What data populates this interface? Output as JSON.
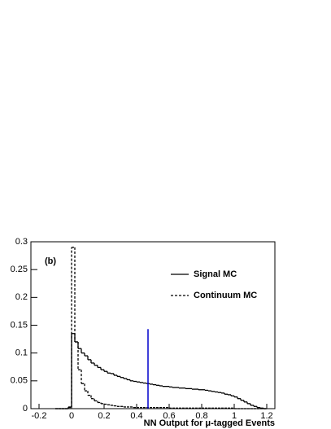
{
  "chart_data": {
    "type": "histogram",
    "annotation": "(b)",
    "x_label": "NN Output for μ-tagged Events",
    "bins": [
      -0.1,
      -0.08,
      -0.06,
      -0.04,
      -0.02,
      0,
      0.02,
      0.04,
      0.06,
      0.08,
      0.1,
      0.12,
      0.14,
      0.16,
      0.18,
      0.2,
      0.22,
      0.24,
      0.26,
      0.28,
      0.3,
      0.32,
      0.34,
      0.36,
      0.38,
      0.4,
      0.42,
      0.44,
      0.46,
      0.48,
      0.5,
      0.52,
      0.54,
      0.56,
      0.58,
      0.6,
      0.62,
      0.64,
      0.66,
      0.68,
      0.7,
      0.72,
      0.74,
      0.76,
      0.78,
      0.8,
      0.82,
      0.84,
      0.86,
      0.88,
      0.9,
      0.92,
      0.94,
      0.96,
      0.98,
      1,
      1.02,
      1.04,
      1.06,
      1.08,
      1.1,
      1.12,
      1.14,
      1.16,
      1.18,
      1.2
    ],
    "series": [
      {
        "name": "Signal MC",
        "color": "#000000",
        "dash": "solid",
        "values": [
          0,
          0,
          0,
          0,
          0.003,
          0.135,
          0.12,
          0.108,
          0.1,
          0.095,
          0.088,
          0.082,
          0.078,
          0.074,
          0.07,
          0.067,
          0.064,
          0.063,
          0.06,
          0.058,
          0.056,
          0.054,
          0.052,
          0.05,
          0.049,
          0.048,
          0.047,
          0.046,
          0.045,
          0.044,
          0.043,
          0.042,
          0.041,
          0.04,
          0.04,
          0.039,
          0.038,
          0.038,
          0.037,
          0.037,
          0.036,
          0.036,
          0.035,
          0.035,
          0.034,
          0.034,
          0.033,
          0.032,
          0.031,
          0.03,
          0.029,
          0.028,
          0.026,
          0.025,
          0.023,
          0.021,
          0.018,
          0.015,
          0.012,
          0.009,
          0.006,
          0.004,
          0.002,
          0.001,
          0
        ]
      },
      {
        "name": "Continuum MC",
        "color": "#000000",
        "dash": "dashed",
        "values": [
          0,
          0,
          0,
          0,
          0.002,
          0.29,
          0.12,
          0.07,
          0.045,
          0.032,
          0.024,
          0.018,
          0.014,
          0.011,
          0.009,
          0.008,
          0.007,
          0.006,
          0.005,
          0.004,
          0.004,
          0.003,
          0.003,
          0.003,
          0.002,
          0.002,
          0.002,
          0.002,
          0.002,
          0.002,
          0.002,
          0.002,
          0.002,
          0.002,
          0.002,
          0.001,
          0.001,
          0.001,
          0.001,
          0.001,
          0.001,
          0.001,
          0.001,
          0.001,
          0.001,
          0.001,
          0.001,
          0.001,
          0.001,
          0.001,
          0.001,
          0.001,
          0.001,
          0.001,
          0.001,
          0,
          0,
          0,
          0,
          0,
          0,
          0,
          0,
          0,
          0
        ]
      }
    ],
    "cut_line": {
      "x": 0.47,
      "y": 0.143,
      "color": "#0000cc"
    },
    "xlim": [
      -0.25,
      1.25
    ],
    "ylim": [
      0,
      0.3
    ],
    "xticks": [
      -0.2,
      0,
      0.2,
      0.4,
      0.6,
      0.8,
      1,
      1.2
    ],
    "yticks": [
      0,
      0.05,
      0.1,
      0.15,
      0.2,
      0.25,
      0.3
    ],
    "legend": "upper-right",
    "grid": false
  }
}
